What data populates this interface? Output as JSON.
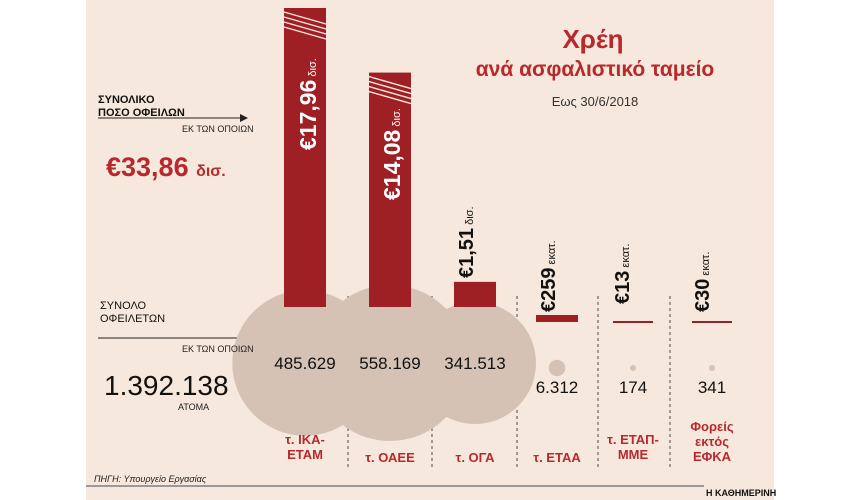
{
  "title": "Χρέη",
  "subtitle": "ανά ασφαλιστικό ταμείο",
  "date_label": "Εως 30/6/2018",
  "total_debt": {
    "label_line1": "ΣΥΝΟΛΙΚΟ",
    "label_line2": "ΠΟΣΟ ΟΦΕΙΛΩΝ",
    "sub_label": "ΕΚ ΤΩΝ ΟΠΟΙΩΝ",
    "value": "€33,86",
    "unit": "δισ."
  },
  "total_debtors": {
    "label_line1": "ΣΥΝΟΛΟ",
    "label_line2": "ΟΦΕΙΛΕΤΩΝ",
    "sub_label": "ΕΚ ΤΩΝ ΟΠΟΙΩΝ",
    "value": "1.392.138",
    "unit": "ΑΤΟΜΑ"
  },
  "source": "ΠΗΓΗ: Υπουργείο Εργασίας",
  "publisher": "Η ΚΑΘΗΜΕΡΙΝΗ",
  "colors": {
    "bar": "#9e1f24",
    "panel": "#f6e8dc",
    "circle": "#d5c2b4",
    "accent": "#b8282c"
  },
  "chart_data": {
    "type": "bar",
    "categories": [
      "τ. ΙΚΑ-ΕΤΑΜ",
      "τ. ΟΑΕΕ",
      "τ. ΟΓΑ",
      "τ. ΕΤΑΑ",
      "τ. ΕΤΑΠ-ΜΜΕ",
      "Φορείς εκτός ΕΦΚΑ"
    ],
    "series": [
      {
        "values_eur_millions": [
          17960,
          14080,
          1510,
          259,
          13,
          30
        ]
      }
    ],
    "value_labels": [
      {
        "amount": "€17,96",
        "unit": "δισ."
      },
      {
        "amount": "€14,08",
        "unit": "δισ."
      },
      {
        "amount": "€1,51",
        "unit": "δισ."
      },
      {
        "amount": "€259",
        "unit": "εκατ."
      },
      {
        "amount": "€13",
        "unit": "εκατ."
      },
      {
        "amount": "€30",
        "unit": "εκατ."
      }
    ],
    "debtors": [
      485629,
      558169,
      341513,
      6312,
      174,
      341
    ],
    "debtors_labels": [
      "485.629",
      "558.169",
      "341.513",
      "6.312",
      "174",
      "341"
    ],
    "fund_labels": [
      [
        "τ. ΙΚΑ-",
        "ΕΤΑΜ"
      ],
      [
        "τ. ΟΑΕΕ"
      ],
      [
        "τ. ΟΓΑ"
      ],
      [
        "τ. ΕΤΑΑ"
      ],
      [
        "τ. ΕΤΑΠ-",
        "ΜΜΕ"
      ],
      [
        "Φορείς",
        "εκτός",
        "ΕΦΚΑ"
      ]
    ]
  }
}
